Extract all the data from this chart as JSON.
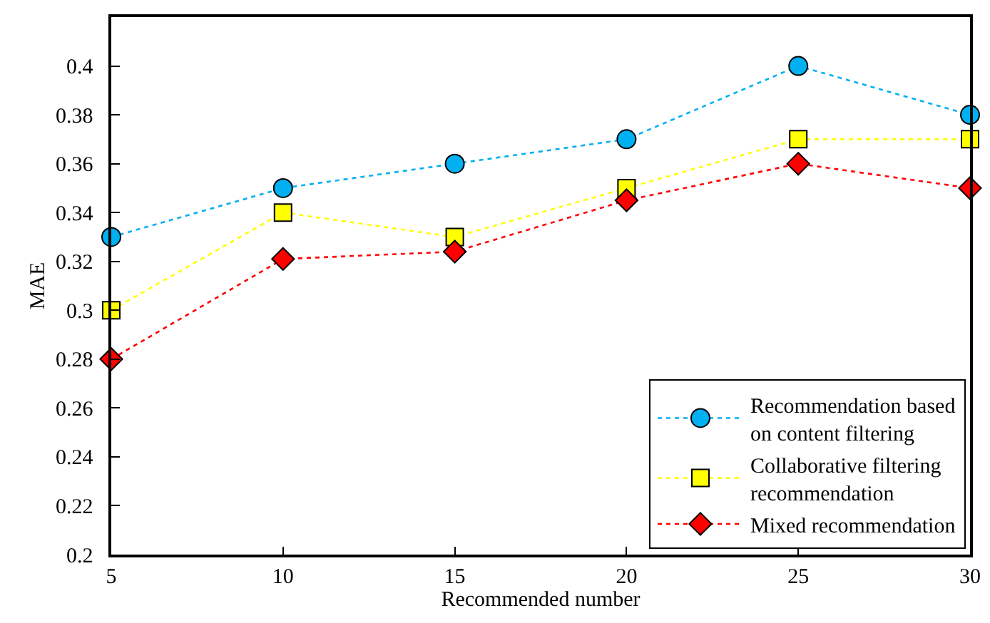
{
  "chart_data": {
    "type": "line",
    "xlabel": "Recommended number",
    "ylabel": "MAE",
    "x": [
      5,
      10,
      15,
      20,
      25,
      30
    ],
    "series": [
      {
        "name": "Recommendation based\non content filtering",
        "color": "#00b0f0",
        "marker": "circle",
        "values": [
          0.33,
          0.35,
          0.36,
          0.37,
          0.4,
          0.38
        ]
      },
      {
        "name": "Collaborative filtering\nrecommendation",
        "color": "#ffff00",
        "marker": "square",
        "values": [
          0.3,
          0.34,
          0.33,
          0.35,
          0.37,
          0.37
        ]
      },
      {
        "name": "Mixed recommendation",
        "color": "#ff0000",
        "marker": "diamond",
        "values": [
          0.28,
          0.321,
          0.324,
          0.345,
          0.36,
          0.35
        ]
      }
    ],
    "xlim": [
      5,
      30
    ],
    "xticks": [
      5,
      10,
      15,
      20,
      25,
      30
    ],
    "ylim": [
      0.2,
      0.42
    ],
    "yticks": [
      0.2,
      0.22,
      0.24,
      0.26,
      0.28,
      0.3,
      0.32,
      0.34,
      0.36,
      0.38,
      0.4
    ],
    "line_style": "dotted",
    "legend": "bottom right"
  }
}
